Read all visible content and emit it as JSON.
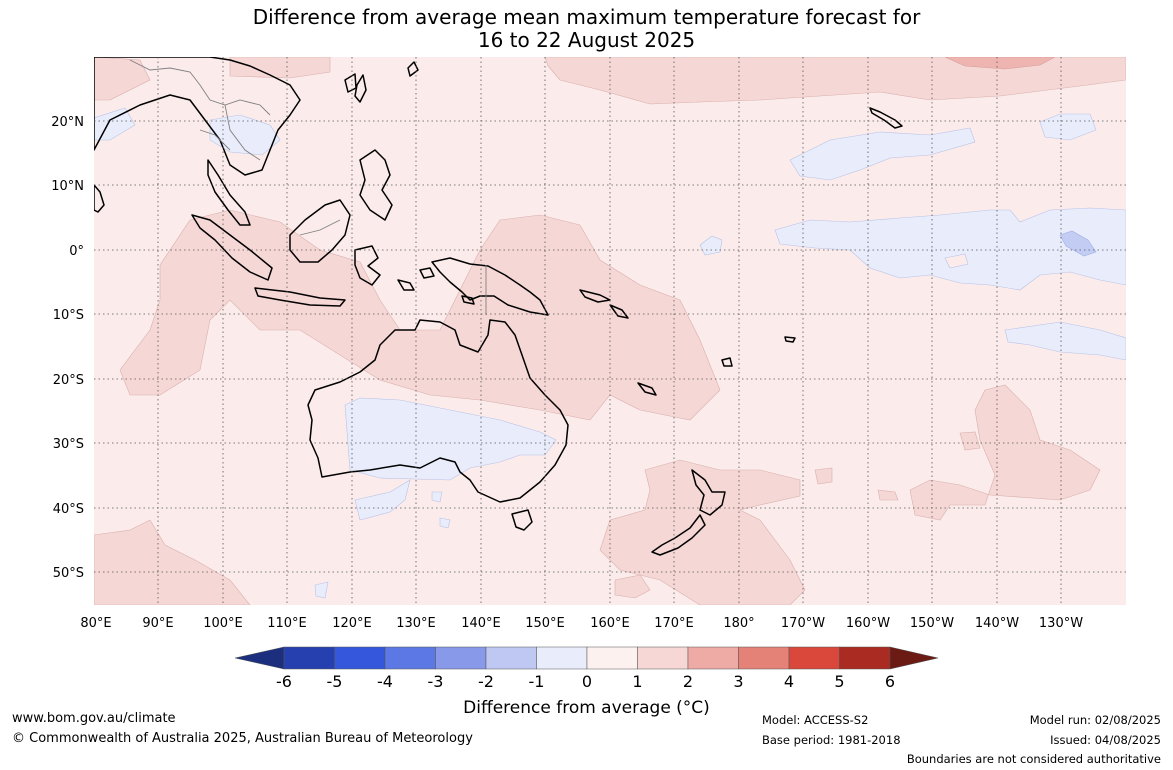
{
  "title": {
    "line1": "Difference from average mean maximum temperature forecast for",
    "line2": "16 to 22 August 2025"
  },
  "map": {
    "lon_labels": [
      "80°E",
      "90°E",
      "100°E",
      "110°E",
      "120°E",
      "130°E",
      "140°E",
      "150°E",
      "160°E",
      "170°E",
      "180°",
      "170°W",
      "160°W",
      "150°W",
      "140°W",
      "130°W"
    ],
    "lat_labels": [
      "20°N",
      "10°N",
      "0°",
      "10°S",
      "20°S",
      "30°S",
      "40°S",
      "50°S"
    ],
    "colors": {
      "ocean_base": "#fbeceb",
      "warm_1_2": "#f5d7d5",
      "warm_2_3": "#eeb4b0",
      "cool_0_m1": "#e8ecfb",
      "cool_m1_m2": "#c3cdf4",
      "land_outline": "#000000",
      "border": "#808080"
    }
  },
  "colorbar": {
    "title": "Difference from average (°C)",
    "tick_labels": [
      "-6",
      "-5",
      "-4",
      "-3",
      "-2",
      "-1",
      "0",
      "1",
      "2",
      "3",
      "4",
      "5",
      "6"
    ],
    "colors": [
      "#1b2f7e",
      "#2640b0",
      "#3457dc",
      "#5b78e4",
      "#8799e8",
      "#bfc8f2",
      "#e8ecfb",
      "#fdf1f0",
      "#f6d7d5",
      "#eeaba6",
      "#e48277",
      "#d9483b",
      "#a92b22",
      "#6b1a14"
    ]
  },
  "footer": {
    "website": "www.bom.gov.au/climate",
    "copyright": "© Commonwealth of Australia 2025, Australian Bureau of Meteorology",
    "model": "Model: ACCESS-S2",
    "base_period": "Base period: 1981-2018",
    "model_run": "Model run: 02/08/2025",
    "issued": "Issued: 04/08/2025",
    "disclaimer": "Boundaries are not considered authoritative"
  }
}
